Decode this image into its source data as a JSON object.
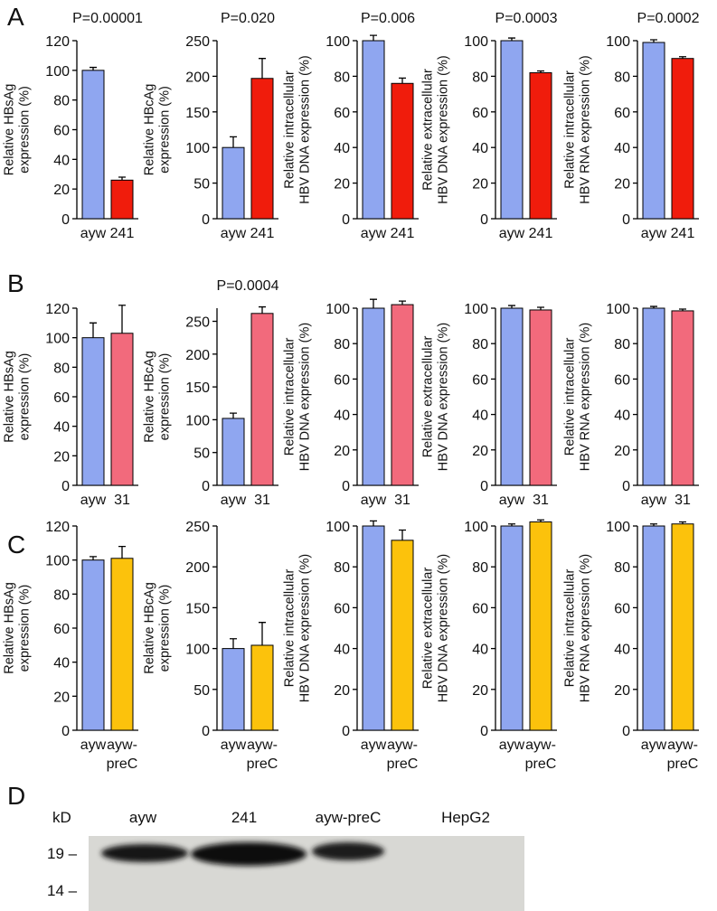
{
  "panel_labels": [
    "A",
    "B",
    "C",
    "D"
  ],
  "chart_data": [
    {
      "type": "bar",
      "annotation": "P=0.00001",
      "ylabel": "Relative HBsAg\nexpression (%)",
      "categories": [
        "ayw",
        "241"
      ],
      "values": [
        100,
        26
      ],
      "errors": [
        2,
        2
      ],
      "colors": [
        "#8fa6f0",
        "#f01c0c"
      ],
      "ylim": [
        0,
        120
      ],
      "yticks": [
        0,
        20,
        40,
        60,
        80,
        100,
        120
      ]
    },
    {
      "type": "bar",
      "annotation": "P=0.020",
      "ylabel": "Relative HBcAg\nexpression (%)",
      "categories": [
        "ayw",
        "241"
      ],
      "values": [
        100,
        197
      ],
      "errors": [
        15,
        28
      ],
      "colors": [
        "#8fa6f0",
        "#f01c0c"
      ],
      "ylim": [
        0,
        250
      ],
      "yticks": [
        0,
        50,
        100,
        150,
        200,
        250
      ]
    },
    {
      "type": "bar",
      "annotation": "P=0.006",
      "ylabel": "Relative intracellular\nHBV DNA expression (%)",
      "categories": [
        "ayw",
        "241"
      ],
      "values": [
        100,
        76
      ],
      "errors": [
        3,
        3
      ],
      "colors": [
        "#8fa6f0",
        "#f01c0c"
      ],
      "ylim": [
        0,
        100
      ],
      "yticks": [
        0,
        20,
        40,
        60,
        80,
        100
      ]
    },
    {
      "type": "bar",
      "annotation": "P=0.0003",
      "ylabel": "Relative extracellular\nHBV DNA expression (%)",
      "categories": [
        "ayw",
        "241"
      ],
      "values": [
        100,
        82
      ],
      "errors": [
        1.5,
        1
      ],
      "colors": [
        "#8fa6f0",
        "#f01c0c"
      ],
      "ylim": [
        0,
        100
      ],
      "yticks": [
        0,
        20,
        40,
        60,
        80,
        100
      ]
    },
    {
      "type": "bar",
      "annotation": "P=0.0002",
      "ylabel": "Relative intracellular\nHBV RNA expression (%)",
      "categories": [
        "ayw",
        "241"
      ],
      "values": [
        99,
        90
      ],
      "errors": [
        1.5,
        1
      ],
      "colors": [
        "#8fa6f0",
        "#f01c0c"
      ],
      "ylim": [
        0,
        100
      ],
      "yticks": [
        0,
        20,
        40,
        60,
        80,
        100
      ]
    },
    {
      "type": "bar",
      "ylabel": "Relative HBsAg\nexpression (%)",
      "categories": [
        "ayw",
        "31"
      ],
      "values": [
        100,
        103
      ],
      "errors": [
        10,
        19
      ],
      "colors": [
        "#8fa6f0",
        "#f26a7c"
      ],
      "ylim": [
        0,
        120
      ],
      "yticks": [
        0,
        20,
        40,
        60,
        80,
        100,
        120
      ]
    },
    {
      "type": "bar",
      "annotation": "P=0.0004",
      "ylabel": "Relative HBcAg\nexpression (%)",
      "categories": [
        "ayw",
        "31"
      ],
      "values": [
        102,
        262
      ],
      "errors": [
        8,
        10
      ],
      "colors": [
        "#8fa6f0",
        "#f26a7c"
      ],
      "ylim": [
        0,
        270
      ],
      "yticks": [
        0,
        50,
        100,
        150,
        200,
        250
      ]
    },
    {
      "type": "bar",
      "ylabel": "Relative intracellular\nHBV DNA expression (%)",
      "categories": [
        "ayw",
        "31"
      ],
      "values": [
        100,
        102
      ],
      "errors": [
        5,
        2
      ],
      "colors": [
        "#8fa6f0",
        "#f26a7c"
      ],
      "ylim": [
        0,
        100
      ],
      "yticks": [
        0,
        20,
        40,
        60,
        80,
        100
      ]
    },
    {
      "type": "bar",
      "ylabel": "Relative extracellular\nHBV DNA expression (%)",
      "categories": [
        "ayw",
        "31"
      ],
      "values": [
        100,
        99
      ],
      "errors": [
        1.5,
        1.5
      ],
      "colors": [
        "#8fa6f0",
        "#f26a7c"
      ],
      "ylim": [
        0,
        100
      ],
      "yticks": [
        0,
        20,
        40,
        60,
        80,
        100
      ]
    },
    {
      "type": "bar",
      "ylabel": "Relative intracellular\nHBV RNA expression (%)",
      "categories": [
        "ayw",
        "31"
      ],
      "values": [
        100,
        98.5
      ],
      "errors": [
        1,
        1
      ],
      "colors": [
        "#8fa6f0",
        "#f26a7c"
      ],
      "ylim": [
        0,
        100
      ],
      "yticks": [
        0,
        20,
        40,
        60,
        80,
        100
      ]
    },
    {
      "type": "bar",
      "ylabel": "Relative HBsAg\nexpression (%)",
      "categories": [
        "ayw",
        "ayw-\npreC"
      ],
      "values": [
        100,
        101
      ],
      "errors": [
        2,
        7
      ],
      "colors": [
        "#8fa6f0",
        "#fcc20c"
      ],
      "ylim": [
        0,
        120
      ],
      "yticks": [
        0,
        20,
        40,
        60,
        80,
        100,
        120
      ]
    },
    {
      "type": "bar",
      "ylabel": "Relative HBcAg\nexpression (%)",
      "categories": [
        "ayw",
        "ayw-\npreC"
      ],
      "values": [
        100,
        104
      ],
      "errors": [
        12,
        28
      ],
      "colors": [
        "#8fa6f0",
        "#fcc20c"
      ],
      "ylim": [
        0,
        250
      ],
      "yticks": [
        0,
        50,
        100,
        150,
        200,
        250
      ]
    },
    {
      "type": "bar",
      "ylabel": "Relative intracellular\nHBV DNA expression (%)",
      "categories": [
        "ayw",
        "ayw-\npreC"
      ],
      "values": [
        100,
        93
      ],
      "errors": [
        2.5,
        5
      ],
      "colors": [
        "#8fa6f0",
        "#fcc20c"
      ],
      "ylim": [
        0,
        100
      ],
      "yticks": [
        0,
        20,
        40,
        60,
        80,
        100
      ]
    },
    {
      "type": "bar",
      "ylabel": "Relative extracellular\nHBV DNA expression (%)",
      "categories": [
        "ayw",
        "ayw-\npreC"
      ],
      "values": [
        100,
        102
      ],
      "errors": [
        1,
        1
      ],
      "colors": [
        "#8fa6f0",
        "#fcc20c"
      ],
      "ylim": [
        0,
        100
      ],
      "yticks": [
        0,
        20,
        40,
        60,
        80,
        100
      ]
    },
    {
      "type": "bar",
      "ylabel": "Relative intracellular\nHBV RNA expression (%)",
      "categories": [
        "ayw",
        "ayw-\npreC"
      ],
      "values": [
        100,
        101
      ],
      "errors": [
        1,
        1
      ],
      "colors": [
        "#8fa6f0",
        "#fcc20c"
      ],
      "ylim": [
        0,
        100
      ],
      "yticks": [
        0,
        20,
        40,
        60,
        80,
        100
      ]
    }
  ],
  "blot": {
    "unit": "kD",
    "lanes": [
      "ayw",
      "241",
      "ayw-preC",
      "HepG2"
    ],
    "markers": [
      "19 –",
      "14 –"
    ]
  }
}
